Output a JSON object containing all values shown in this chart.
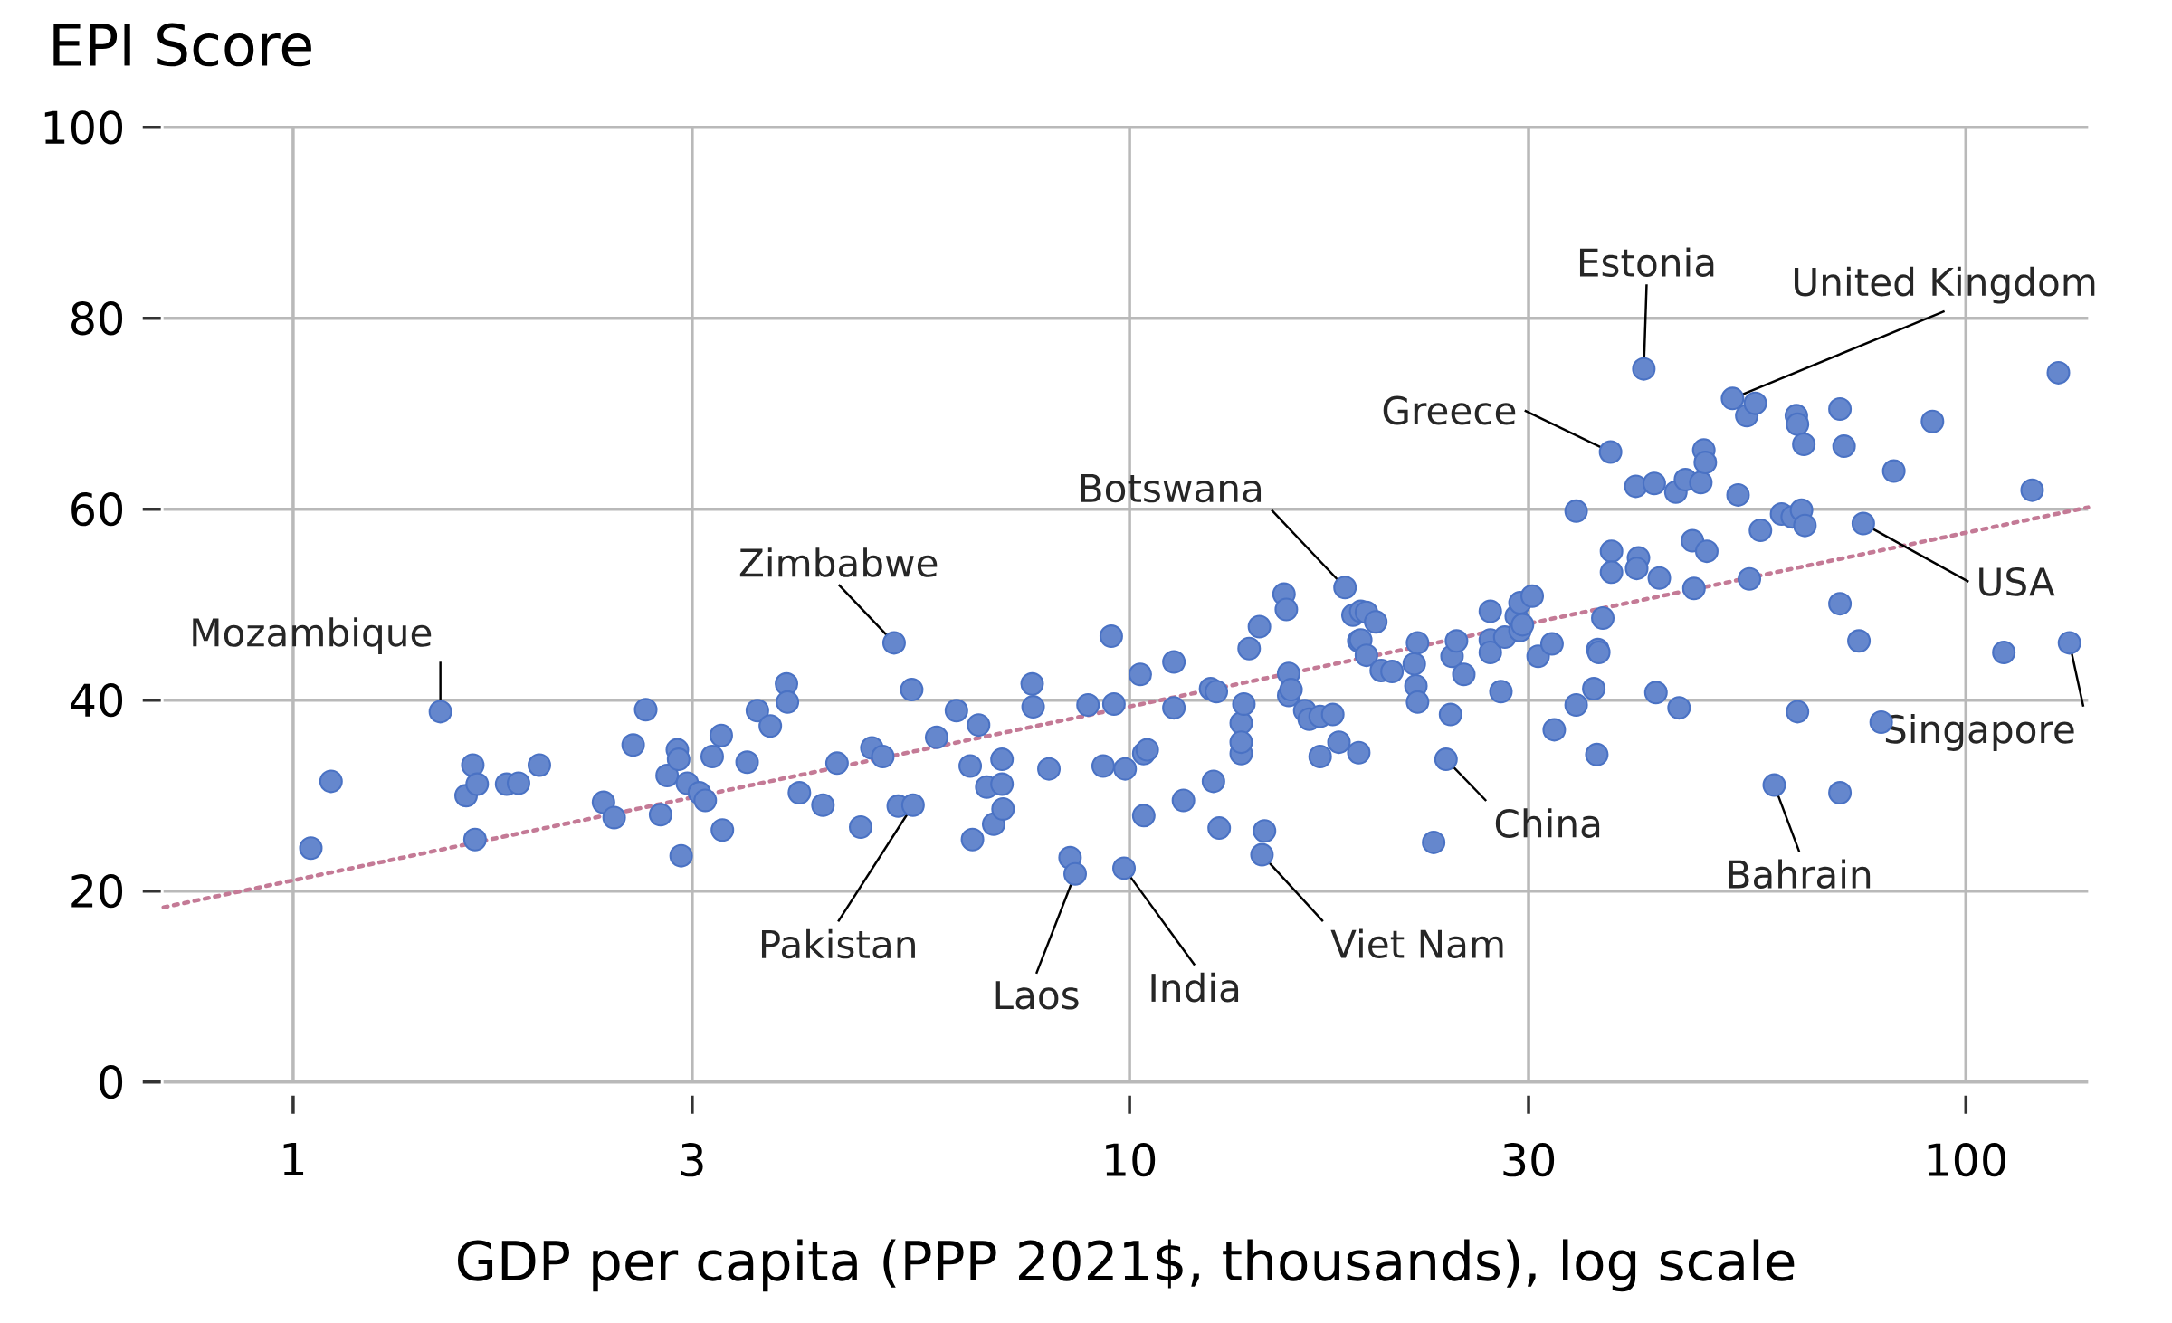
{
  "chart_data": {
    "type": "scatter",
    "ylabel": "EPI Score",
    "xlabel": "GDP per capita (PPP 2021$, thousands), log scale",
    "log": "x",
    "grid": true,
    "xlim": [
      0.7,
      140
    ],
    "xticks": [
      1,
      3,
      10,
      30,
      100
    ],
    "ylim": [
      0,
      100
    ],
    "yticks": [
      0,
      20,
      40,
      60,
      80,
      100
    ],
    "series": [
      {
        "color": "#4a72c4",
        "marker": "circle",
        "x": [
          1.05,
          1.11,
          1.5,
          1.61,
          1.64,
          1.66,
          1.65,
          1.8,
          1.86,
          1.97,
          2.35,
          2.42,
          2.55,
          2.64,
          2.75,
          2.8,
          2.88,
          2.89,
          2.91,
          2.96,
          3.06,
          3.11,
          3.17,
          3.25,
          3.26,
          3.49,
          3.59,
          3.72,
          3.89,
          3.9,
          4.03,
          4.3,
          4.47,
          4.77,
          4.92,
          5.07,
          5.23,
          5.29,
          5.51,
          5.49,
          5.88,
          6.21,
          6.45,
          6.49,
          6.6,
          6.75,
          6.88,
          7.04,
          7.04,
          7.06,
          7.65,
          7.67,
          8.01,
          8.49,
          8.61,
          8.92,
          9.3,
          9.51,
          9.58,
          9.85,
          9.88,
          10.3,
          10.4,
          10.5,
          10.4,
          11.3,
          11.3,
          11.6,
          12.5,
          12.7,
          12.6,
          12.8,
          13.6,
          13.6,
          13.6,
          13.7,
          13.9,
          14.3,
          14.5,
          14.4,
          15.3,
          15.4,
          15.5,
          15.5,
          15.6,
          16.2,
          16.4,
          16.9,
          16.9,
          17.5,
          17.8,
          18.1,
          18.5,
          18.8,
          18.8,
          18.9,
          18.9,
          19.2,
          19.2,
          19.7,
          20.0,
          20.6,
          21.9,
          22.0,
          22.1,
          22.1,
          23.1,
          23.9,
          24.2,
          24.3,
          24.6,
          25.1,
          27.0,
          27.0,
          27.0,
          27.8,
          28.1,
          29.0,
          29.3,
          29.3,
          29.5,
          30.3,
          30.8,
          32.0,
          32.2,
          34.2,
          34.2,
          35.9,
          36.2,
          36.3,
          36.4,
          36.8,
          37.6,
          37.7,
          37.7,
          40.3,
          40.6,
          40.4,
          41.2,
          42.4,
          42.6,
          43.0,
          45.0,
          45.4,
          46.2,
          47.1,
          47.3,
          48.2,
          48.6,
          48.8,
          49.0,
          52.6,
          53.4,
          54.7,
          55.1,
          56.0,
          56.8,
          59.0,
          60.2,
          62.0,
          62.7,
          62.9,
          62.9,
          63.6,
          64.0,
          64.2,
          70.7,
          70.7,
          70.7,
          71.5,
          74.5,
          75.4,
          79.2,
          82.0,
          91.2,
          111,
          120,
          129,
          133
        ],
        "values": [
          24.5,
          31.5,
          38.8,
          30.0,
          33.2,
          31.2,
          25.4,
          31.2,
          31.3,
          33.2,
          29.3,
          27.7,
          35.3,
          39.0,
          28.0,
          32.1,
          34.8,
          33.8,
          23.7,
          31.3,
          30.3,
          29.5,
          34.1,
          36.3,
          26.4,
          33.5,
          38.9,
          37.3,
          41.7,
          39.8,
          30.3,
          29.0,
          33.4,
          26.7,
          35.0,
          34.1,
          46.0,
          28.9,
          29.0,
          41.1,
          36.1,
          38.9,
          33.1,
          25.4,
          37.4,
          30.9,
          27.0,
          31.2,
          33.8,
          28.6,
          41.7,
          39.3,
          32.8,
          23.5,
          21.8,
          39.5,
          33.1,
          46.7,
          39.6,
          22.4,
          32.8,
          42.7,
          34.4,
          34.8,
          27.9,
          44.0,
          39.2,
          29.5,
          41.2,
          40.9,
          31.5,
          26.6,
          34.4,
          37.6,
          35.6,
          39.6,
          45.4,
          47.7,
          26.3,
          23.8,
          51.1,
          49.5,
          42.8,
          40.5,
          41.1,
          38.9,
          38.0,
          38.3,
          34.1,
          38.5,
          35.6,
          51.8,
          48.9,
          34.5,
          46.2,
          46.3,
          49.3,
          49.2,
          44.7,
          48.2,
          43.1,
          43.0,
          43.8,
          41.5,
          46.0,
          39.8,
          25.1,
          33.8,
          38.5,
          44.6,
          46.2,
          42.7,
          49.3,
          46.3,
          45.0,
          40.9,
          46.6,
          48.8,
          50.2,
          47.3,
          47.9,
          50.9,
          44.6,
          45.9,
          36.9,
          59.8,
          39.5,
          41.2,
          34.3,
          45.3,
          45.0,
          48.6,
          66.0,
          55.6,
          53.4,
          62.4,
          54.9,
          53.8,
          74.7,
          62.7,
          40.8,
          52.8,
          61.8,
          39.2,
          63.1,
          56.7,
          51.7,
          62.8,
          66.2,
          64.9,
          55.6,
          71.6,
          61.5,
          69.8,
          52.7,
          71.1,
          57.8,
          31.1,
          59.5,
          59.2,
          69.8,
          38.8,
          68.9,
          59.9,
          66.8,
          58.3,
          70.5,
          50.1,
          30.3,
          66.6,
          46.2,
          58.5,
          37.7,
          64.0,
          69.2,
          45.0,
          62.0,
          74.3,
          46.0
        ]
      },
      {
        "type": "line",
        "color": "#c47a96",
        "marker": "none",
        "line_style": "dotted",
        "x": [
          0.7,
          140
        ],
        "values": [
          18.3,
          60.2
        ]
      }
    ],
    "annotations": [
      {
        "text": "Mozambique",
        "x": 1.5,
        "y": 38.8
      },
      {
        "text": "Zimbabwe",
        "x": 5.23,
        "y": 46.0
      },
      {
        "text": "Botswana",
        "x": 18.1,
        "y": 51.8
      },
      {
        "text": "Greece",
        "x": 37.6,
        "y": 66.0
      },
      {
        "text": "Estonia",
        "x": 41.2,
        "y": 74.7
      },
      {
        "text": "United Kingdom",
        "x": 52.6,
        "y": 71.6
      },
      {
        "text": "USA",
        "x": 75.4,
        "y": 58.5
      },
      {
        "text": "Singapore",
        "x": 133,
        "y": 46.0
      },
      {
        "text": "Bahrain",
        "x": 59.0,
        "y": 31.1
      },
      {
        "text": "China",
        "x": 23.9,
        "y": 33.8
      },
      {
        "text": "Viet Nam",
        "x": 14.4,
        "y": 23.8
      },
      {
        "text": "India",
        "x": 9.85,
        "y": 22.4
      },
      {
        "text": "Laos",
        "x": 8.61,
        "y": 21.8
      },
      {
        "text": "Pakistan",
        "x": 5.51,
        "y": 29.0
      }
    ]
  }
}
